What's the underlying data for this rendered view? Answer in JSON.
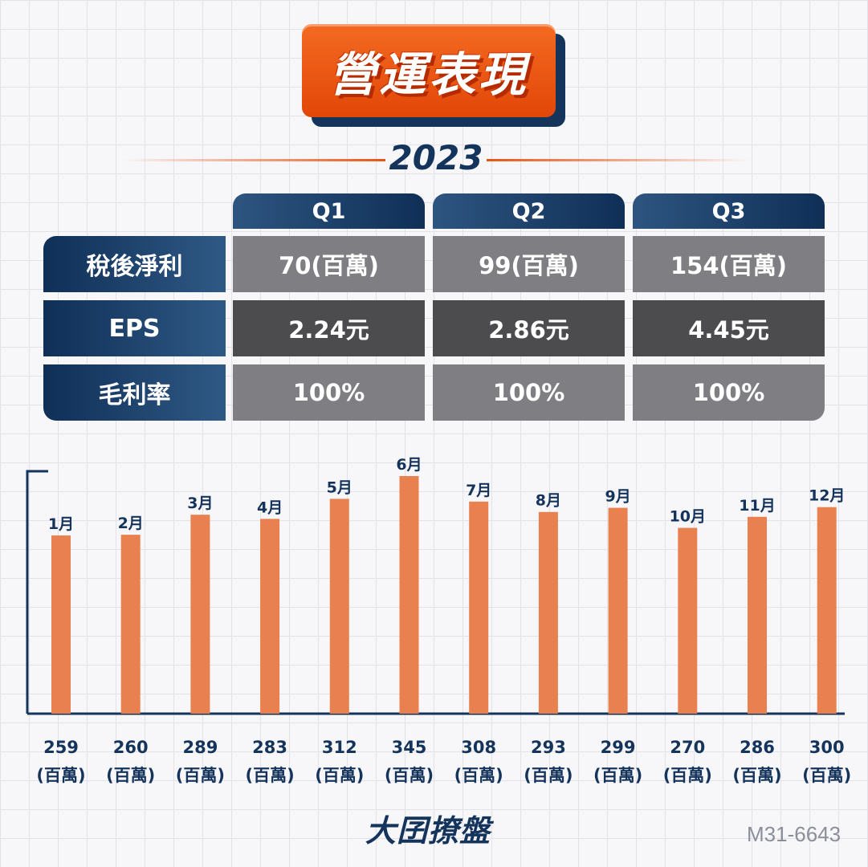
{
  "title": "營運表現",
  "year": "2023",
  "table": {
    "quarters": [
      "Q1",
      "Q2",
      "Q3"
    ],
    "rows": [
      {
        "label": "稅後淨利",
        "values": [
          "70(百萬)",
          "99(百萬)",
          "154(百萬)"
        ]
      },
      {
        "label": "EPS",
        "values": [
          "2.24元",
          "2.86元",
          "4.45元"
        ]
      },
      {
        "label": "毛利率",
        "values": [
          "100%",
          "100%",
          "100%"
        ]
      }
    ]
  },
  "chart_data": {
    "type": "bar",
    "categories": [
      "1月",
      "2月",
      "3月",
      "4月",
      "5月",
      "6月",
      "7月",
      "8月",
      "9月",
      "10月",
      "11月",
      "12月"
    ],
    "values": [
      259,
      260,
      289,
      283,
      312,
      345,
      308,
      293,
      299,
      270,
      286,
      300
    ],
    "value_labels": [
      "259",
      "260",
      "289",
      "283",
      "312",
      "345",
      "308",
      "293",
      "299",
      "270",
      "286",
      "300"
    ],
    "unit_label": "(百萬)",
    "bar_color": "#e9804f",
    "label_color": "#15345c"
  },
  "brand": "大囝撩盤",
  "code": "M31-6643",
  "colors": {
    "accent": "#e85514",
    "navy": "#15345c"
  }
}
